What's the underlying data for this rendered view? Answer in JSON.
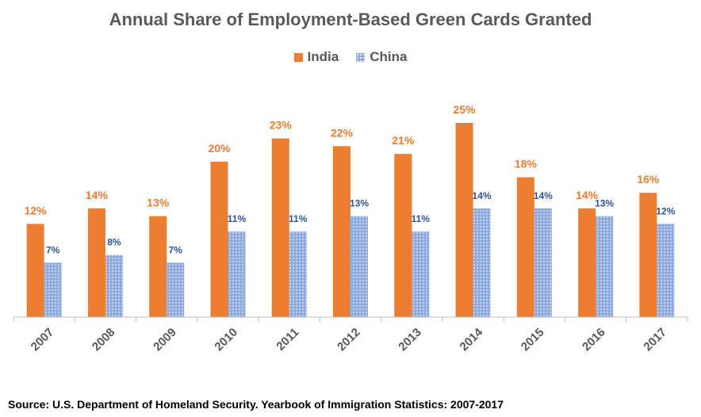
{
  "chart_data": {
    "type": "bar",
    "title": "Annual Share of Employment-Based Green Cards Granted",
    "categories": [
      "2007",
      "2008",
      "2009",
      "2010",
      "2011",
      "2012",
      "2013",
      "2014",
      "2015",
      "2016",
      "2017"
    ],
    "series": [
      {
        "name": "India",
        "color": "#ED7D31",
        "values": [
          12,
          14,
          13,
          20,
          23,
          22,
          21,
          25,
          18,
          14,
          16
        ],
        "labels": [
          "12%",
          "14%",
          "13%",
          "20%",
          "23%",
          "22%",
          "21%",
          "25%",
          "18%",
          "14%",
          "16%"
        ]
      },
      {
        "name": "China",
        "color": "#8FAADC",
        "values": [
          7,
          8,
          7,
          11,
          11,
          13,
          11,
          14,
          14,
          13,
          12
        ],
        "labels": [
          "7%",
          "8%",
          "7%",
          "11%",
          "11%",
          "13%",
          "11%",
          "14%",
          "14%",
          "13%",
          "12%"
        ]
      }
    ],
    "ylim": [
      0,
      25
    ],
    "legend": "top",
    "grid": false
  },
  "source": "Source: U.S. Department of Homeland Security. Yearbook of Immigration Statistics: 2007-2017"
}
